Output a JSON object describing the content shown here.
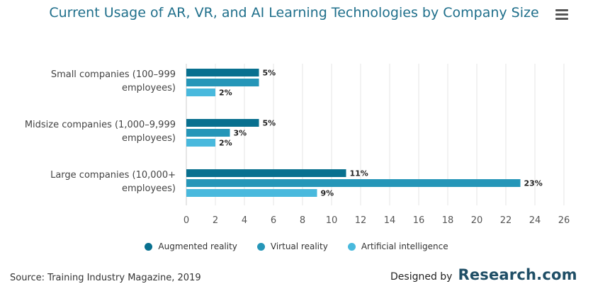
{
  "chart_data": {
    "type": "bar",
    "orientation": "horizontal",
    "title": "Current Usage of AR, VR, and AI Learning Technologies by Company Size",
    "categories": [
      [
        "Small companies (100–999",
        "employees)"
      ],
      [
        "Midsize companies (1,000–9,999",
        "employees)"
      ],
      [
        "Large companies (10,000+",
        "employees)"
      ]
    ],
    "series": [
      {
        "name": "Augmented reality",
        "color": "#08708f",
        "values": [
          5,
          5,
          11
        ]
      },
      {
        "name": "Virtual reality",
        "color": "#2596b8",
        "values": [
          5,
          3,
          23
        ]
      },
      {
        "name": "Artificial intelligence",
        "color": "#49b9dd",
        "values": [
          2,
          2,
          9
        ]
      }
    ],
    "value_labels": [
      [
        "5%",
        "",
        "2%"
      ],
      [
        "5%",
        "3%",
        "2%"
      ],
      [
        "11%",
        "23%",
        "9%"
      ]
    ],
    "xlim": [
      0,
      26
    ],
    "xticks": [
      0,
      2,
      4,
      6,
      8,
      10,
      12,
      14,
      16,
      18,
      20,
      22,
      24,
      26
    ],
    "grid": true,
    "legend_position": "bottom"
  },
  "footer": {
    "source": "Source: Training Industry Magazine, 2019",
    "designed_by": "Designed by",
    "brand": "Research.com"
  },
  "menu": {
    "icon": "hamburger-menu-icon"
  }
}
